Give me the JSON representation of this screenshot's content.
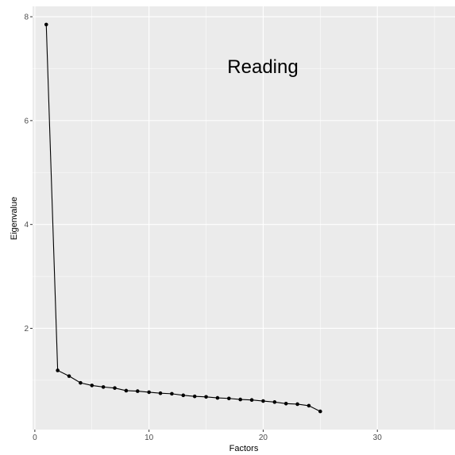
{
  "chart_data": {
    "type": "line",
    "title": "",
    "annotation": "Reading",
    "xlabel": "Factors",
    "ylabel": "Eigenvalue",
    "xlim": [
      -0.2,
      36.8
    ],
    "ylim": [
      0.05,
      8.2
    ],
    "x_ticks": [
      0,
      10,
      20,
      30
    ],
    "y_ticks": [
      2,
      4,
      6,
      8
    ],
    "x_minor": [
      5,
      15,
      25,
      35
    ],
    "y_minor": [
      1,
      3,
      5,
      7
    ],
    "grid": true,
    "legend": "none",
    "colors": {
      "panel": "#ebebeb",
      "grid": "#ffffff",
      "line": "#000000",
      "tick_text": "#4d4d4d"
    },
    "series": [
      {
        "x": [
          1,
          2,
          3,
          4,
          5,
          6,
          7,
          8,
          9,
          10,
          11,
          12,
          13,
          14,
          15,
          16,
          17,
          18,
          19,
          20,
          21,
          22,
          23,
          24,
          25
        ],
        "values": [
          7.85,
          1.19,
          1.08,
          0.95,
          0.9,
          0.87,
          0.85,
          0.8,
          0.79,
          0.77,
          0.75,
          0.74,
          0.71,
          0.69,
          0.68,
          0.66,
          0.65,
          0.63,
          0.62,
          0.6,
          0.58,
          0.55,
          0.54,
          0.51,
          0.4
        ]
      }
    ]
  }
}
